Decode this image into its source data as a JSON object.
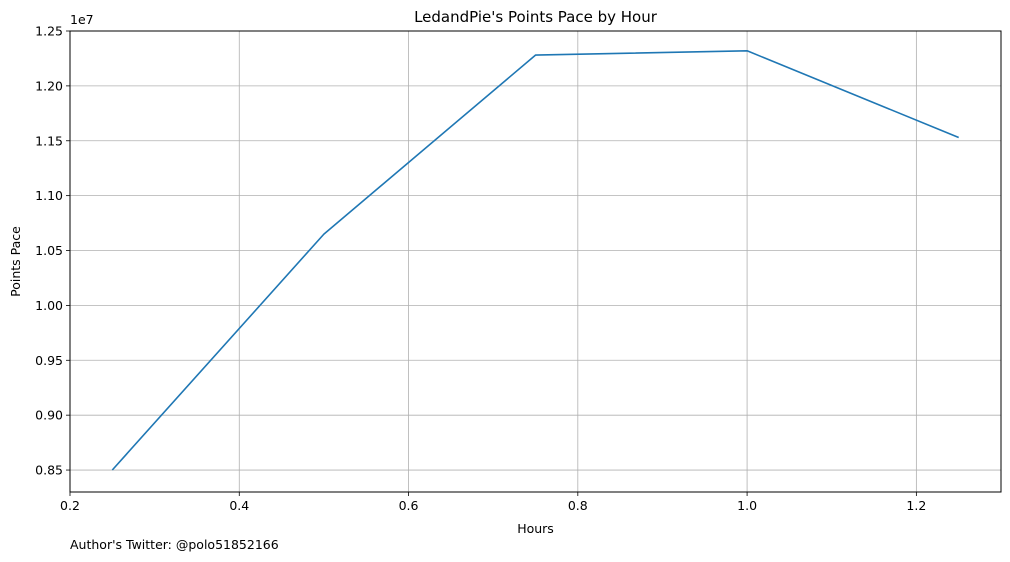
{
  "chart_data": {
    "type": "line",
    "title": "LedandPie's Points Pace by Hour",
    "xlabel": "Hours",
    "ylabel": "Points Pace",
    "offset_label": "1e7",
    "xlim": [
      0.2,
      1.3
    ],
    "ylim": [
      0.83,
      1.25
    ],
    "x_ticks": [
      0.2,
      0.4,
      0.6,
      0.8,
      1.0,
      1.2
    ],
    "x_tick_labels": [
      "0.2",
      "0.4",
      "0.6",
      "0.8",
      "1.0",
      "1.2"
    ],
    "y_ticks": [
      0.85,
      0.9,
      0.95,
      1.0,
      1.05,
      1.1,
      1.15,
      1.2,
      1.25
    ],
    "y_tick_labels": [
      "0.85",
      "0.90",
      "0.95",
      "1.00",
      "1.05",
      "1.10",
      "1.15",
      "1.20",
      "1.25"
    ],
    "grid": true,
    "series": [
      {
        "color": "#1f77b4",
        "x": [
          0.25,
          0.5,
          0.75,
          1.0,
          1.25
        ],
        "y": [
          0.85,
          1.065,
          1.228,
          1.232,
          1.153
        ]
      }
    ]
  },
  "footer": {
    "author_text": "Author's Twitter: @polo51852166"
  }
}
